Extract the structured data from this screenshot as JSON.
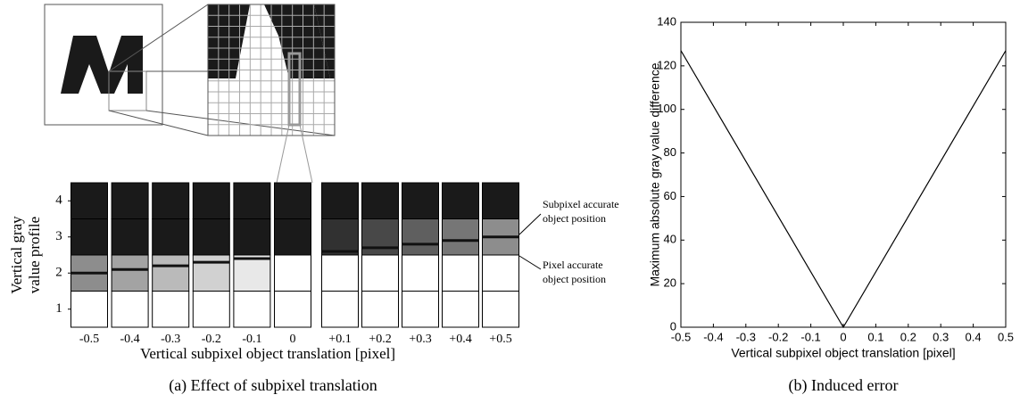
{
  "chart_data": [
    {
      "type": "profile",
      "title": "(a) Effect of subpixel translation",
      "xlabel": "Vertical subpixel object translation [pixel]",
      "ylabel": [
        "Vertical gray",
        "value profile"
      ],
      "categories": [
        "-0.5",
        "-0.4",
        "-0.3",
        "-0.2",
        "-0.1",
        "0",
        "+0.1",
        "+0.2",
        "+0.3",
        "+0.4",
        "+0.5"
      ],
      "values": [
        2.0,
        2.1,
        2.2,
        2.3,
        2.4,
        2.5,
        2.6,
        2.7,
        2.8,
        2.9,
        3.0
      ],
      "ylim": [
        0.5,
        4.5
      ],
      "yticks": [
        1,
        2,
        3,
        4
      ],
      "color": "#1a1a1a",
      "annotations": [
        [
          "Subpixel accurate",
          "object position"
        ],
        [
          "Pixel accurate",
          "object position"
        ]
      ]
    },
    {
      "type": "line",
      "title": "(b) Induced error",
      "xlabel": "Vertical subpixel object translation [pixel]",
      "ylabel": "Maximum absolute gray value difference",
      "x": [
        -0.5,
        0,
        0.5
      ],
      "values": [
        127,
        0,
        127
      ],
      "color": "#000000",
      "xlim": [
        -0.5,
        0.5
      ],
      "ylim": [
        0,
        140
      ],
      "xticks": [
        -0.5,
        -0.4,
        -0.3,
        -0.2,
        -0.1,
        0,
        0.1,
        0.2,
        0.3,
        0.4,
        0.5
      ],
      "yticks": [
        0,
        20,
        40,
        60,
        80,
        100,
        120,
        140
      ]
    }
  ]
}
